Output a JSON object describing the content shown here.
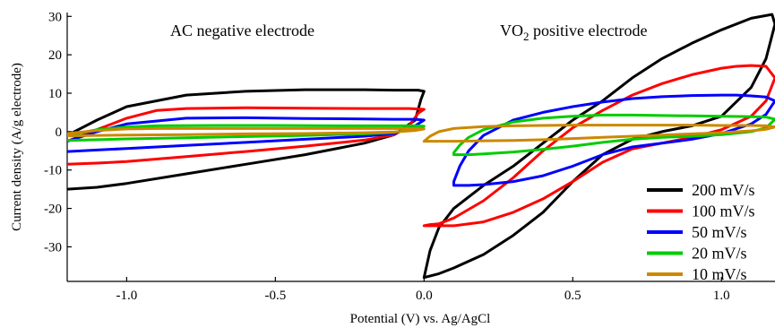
{
  "chart_data": {
    "type": "line",
    "xlabel": "Potential (V) vs. Ag/AgCl",
    "ylabel": "Current density (A/g electrode)",
    "xlim": [
      -1.2,
      1.18
    ],
    "ylim": [
      -39,
      31
    ],
    "x_ticks": [
      -1.0,
      -0.5,
      0.0,
      0.5,
      1.0
    ],
    "x_tick_labels": [
      "-1.0",
      "-0.5",
      "0.0",
      "0.5",
      "1.0"
    ],
    "y_ticks": [
      -30,
      -20,
      -10,
      0,
      10,
      20,
      30
    ],
    "y_tick_labels": [
      "-30",
      "-20",
      "-10",
      "0",
      "10",
      "20",
      "30"
    ],
    "grid": false,
    "legend_position": "bottom-right",
    "annotations": [
      {
        "text": "AC negative electrode"
      },
      {
        "text_main": "VO",
        "text_sub": "2",
        "text_tail": " positive electrode"
      }
    ],
    "series": [
      {
        "name": "200 mV/s",
        "color": "#000000",
        "panels": [
          {
            "x": [
              -1.2,
              -1.1,
              -1.0,
              -0.8,
              -0.6,
              -0.4,
              -0.2,
              -0.1,
              -0.03,
              -0.01,
              0.0,
              -0.02,
              -0.05,
              -0.1,
              -0.2,
              -0.4,
              -0.6,
              -0.8,
              -1.0,
              -1.1,
              -1.2
            ],
            "y": [
              -15,
              -14.5,
              -13.5,
              -11,
              -8.5,
              -6,
              -3,
              -0.8,
              3,
              8.5,
              10.5,
              10.8,
              10.8,
              10.8,
              10.9,
              10.9,
              10.5,
              9.5,
              6.5,
              3,
              -1
            ]
          },
          {
            "x": [
              0.0,
              0.02,
              0.05,
              0.1,
              0.2,
              0.3,
              0.4,
              0.5,
              0.6,
              0.7,
              0.8,
              0.9,
              1.0,
              1.1,
              1.17,
              1.18,
              1.15,
              1.1,
              1.0,
              0.9,
              0.8,
              0.7,
              0.6,
              0.5,
              0.4,
              0.3,
              0.2,
              0.1,
              0.05,
              0.0
            ],
            "y": [
              -38,
              -31,
              -25,
              -20,
              -14,
              -9,
              -3,
              3,
              8,
              14,
              19,
              23,
              26.5,
              29.5,
              30.5,
              28,
              19,
              11.5,
              4,
              1.5,
              0,
              -2,
              -6,
              -13,
              -21,
              -27,
              -32,
              -35.5,
              -37,
              -38
            ]
          }
        ]
      },
      {
        "name": "100 mV/s",
        "color": "#ff0000",
        "panels": [
          {
            "x": [
              -1.2,
              -1.1,
              -1.0,
              -0.8,
              -0.6,
              -0.4,
              -0.2,
              -0.1,
              -0.05,
              -0.02,
              0.0,
              -0.02,
              -0.05,
              -0.1,
              -0.2,
              -0.4,
              -0.6,
              -0.8,
              -0.9,
              -1.0,
              -1.1,
              -1.2
            ],
            "y": [
              -8.5,
              -8.2,
              -7.8,
              -6.5,
              -5.2,
              -3.8,
              -2.2,
              -0.8,
              1.5,
              4.8,
              5.8,
              5.9,
              6,
              6,
              6,
              6.1,
              6.2,
              6,
              5.5,
              3.5,
              0.5,
              -2.5
            ]
          },
          {
            "x": [
              0.0,
              0.02,
              0.05,
              0.1,
              0.2,
              0.3,
              0.4,
              0.5,
              0.6,
              0.7,
              0.8,
              0.9,
              1.0,
              1.05,
              1.1,
              1.15,
              1.18,
              1.15,
              1.1,
              1.0,
              0.9,
              0.8,
              0.7,
              0.6,
              0.5,
              0.4,
              0.3,
              0.2,
              0.1,
              0.05,
              0.0
            ],
            "y": [
              -24.5,
              -24.2,
              -24,
              -22.5,
              -18,
              -12,
              -5,
              1,
              5.5,
              9.5,
              12.5,
              14.8,
              16.5,
              17,
              17.2,
              17,
              14,
              8,
              4,
              0.5,
              -1.5,
              -3,
              -4.5,
              -8,
              -13,
              -17.5,
              -21,
              -23.5,
              -24.5,
              -24.5,
              -24.5
            ]
          }
        ]
      },
      {
        "name": "50 mV/s",
        "color": "#0000ff",
        "panels": [
          {
            "x": [
              -1.2,
              -1.1,
              -1.0,
              -0.8,
              -0.6,
              -0.4,
              -0.2,
              -0.1,
              -0.03,
              0.0,
              -0.03,
              -0.1,
              -0.2,
              -0.4,
              -0.6,
              -0.8,
              -1.0,
              -1.1,
              -1.2
            ],
            "y": [
              -5.2,
              -4.8,
              -4.4,
              -3.6,
              -2.8,
              -2,
              -1.2,
              -0.5,
              1.5,
              3,
              3.2,
              3.2,
              3.3,
              3.4,
              3.6,
              3.5,
              2,
              0,
              -2.5
            ]
          },
          {
            "x": [
              0.1,
              0.1,
              0.12,
              0.15,
              0.2,
              0.3,
              0.4,
              0.5,
              0.6,
              0.7,
              0.8,
              0.9,
              1.0,
              1.05,
              1.1,
              1.15,
              1.18,
              1.15,
              1.1,
              1.0,
              0.9,
              0.8,
              0.7,
              0.6,
              0.5,
              0.4,
              0.3,
              0.2,
              0.15,
              0.1
            ],
            "y": [
              -14,
              -13,
              -9,
              -5,
              -1,
              3,
              5,
              6.5,
              7.7,
              8.6,
              9.1,
              9.4,
              9.5,
              9.5,
              9.3,
              9,
              8,
              4.5,
              2,
              -0.5,
              -2,
              -3,
              -4,
              -6,
              -9,
              -11.5,
              -13,
              -13.8,
              -14,
              -14
            ]
          }
        ]
      },
      {
        "name": "20 mV/s",
        "color": "#00cc00",
        "panels": [
          {
            "x": [
              -1.2,
              -1.1,
              -1.0,
              -0.8,
              -0.6,
              -0.4,
              -0.2,
              -0.1,
              -0.03,
              0.0,
              -0.03,
              -0.1,
              -0.3,
              -0.5,
              -0.7,
              -0.9,
              -1.0,
              -1.1,
              -1.2
            ],
            "y": [
              -2.3,
              -2.1,
              -1.9,
              -1.6,
              -1.3,
              -1,
              -0.6,
              -0.2,
              0.7,
              1.4,
              1.5,
              1.5,
              1.5,
              1.6,
              1.6,
              1.5,
              1.2,
              0.5,
              -1
            ]
          },
          {
            "x": [
              0.1,
              0.1,
              0.12,
              0.15,
              0.2,
              0.3,
              0.4,
              0.5,
              0.6,
              0.7,
              0.8,
              0.9,
              1.0,
              1.1,
              1.15,
              1.18,
              1.15,
              1.1,
              1.0,
              0.9,
              0.8,
              0.7,
              0.6,
              0.5,
              0.4,
              0.3,
              0.2,
              0.15,
              0.1
            ],
            "y": [
              -6,
              -5.5,
              -3.5,
              -1.5,
              0.5,
              2.5,
              3.5,
              4,
              4.3,
              4.3,
              4.2,
              4.1,
              4,
              3.9,
              3.8,
              3.2,
              1,
              0,
              -0.8,
              -1.2,
              -1.5,
              -2,
              -2.8,
              -3.8,
              -4.6,
              -5.3,
              -5.8,
              -6,
              -6
            ]
          }
        ]
      },
      {
        "name": "10 mV/s",
        "color": "#cc8800",
        "panels": [
          {
            "x": [
              -1.2,
              -1.1,
              -1.0,
              -0.8,
              -0.6,
              -0.4,
              -0.2,
              -0.1,
              -0.03,
              0.0,
              -0.03,
              -0.1,
              -0.3,
              -0.5,
              -0.7,
              -0.9,
              -1.0,
              -1.1,
              -1.2
            ],
            "y": [
              -1.1,
              -1.0,
              -0.9,
              -0.8,
              -0.6,
              -0.5,
              -0.3,
              -0.1,
              0.3,
              0.7,
              0.8,
              0.8,
              0.8,
              0.8,
              0.8,
              0.8,
              0.7,
              0.3,
              -0.5
            ]
          },
          {
            "x": [
              0.0,
              0.02,
              0.05,
              0.1,
              0.2,
              0.3,
              0.4,
              0.5,
              0.6,
              0.7,
              0.8,
              0.9,
              1.0,
              1.1,
              1.15,
              1.18,
              1.15,
              1.1,
              1.0,
              0.9,
              0.8,
              0.7,
              0.6,
              0.5,
              0.4,
              0.3,
              0.2,
              0.1,
              0.05,
              0.0
            ],
            "y": [
              -2.5,
              -1.2,
              0,
              0.8,
              1.3,
              1.5,
              1.6,
              1.7,
              1.7,
              1.7,
              1.7,
              1.7,
              1.6,
              1.6,
              1.5,
              1.2,
              0.6,
              0.2,
              -0.3,
              -0.6,
              -0.9,
              -1.2,
              -1.5,
              -1.8,
              -2.1,
              -2.3,
              -2.4,
              -2.5,
              -2.5,
              -2.5
            ]
          }
        ]
      }
    ]
  }
}
